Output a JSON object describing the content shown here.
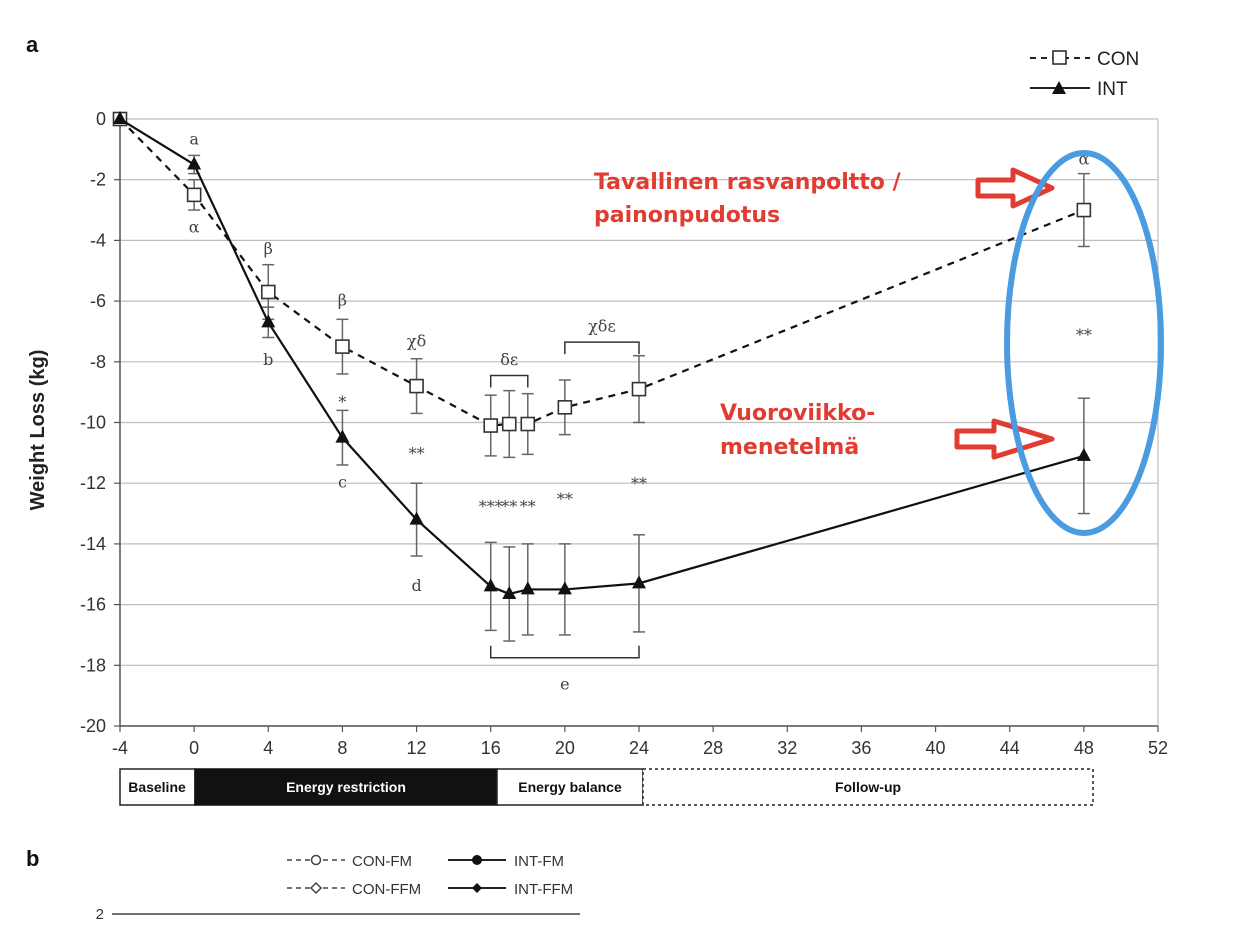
{
  "panel_a_label": "a",
  "panel_b_label": "b",
  "chart_data": {
    "type": "line",
    "title": "",
    "xlabel": "",
    "ylabel": "Weight Loss (kg)",
    "xlim": [
      -4,
      52
    ],
    "ylim": [
      -20,
      0
    ],
    "xticks": [
      -4,
      0,
      4,
      8,
      12,
      16,
      20,
      24,
      28,
      32,
      36,
      40,
      44,
      48,
      52
    ],
    "yticks": [
      0,
      -2,
      -4,
      -6,
      -8,
      -10,
      -12,
      -14,
      -16,
      -18,
      -20
    ],
    "grid": "horizontal",
    "legend_position": "top-right",
    "series": [
      {
        "name": "CON",
        "style": "dashed",
        "marker": "open-square",
        "x": [
          -4,
          0,
          4,
          8,
          12,
          16,
          17,
          18,
          20,
          24,
          48
        ],
        "y": [
          0,
          -2.5,
          -5.7,
          -7.5,
          -8.8,
          -10.1,
          -10.05,
          -10.05,
          -9.5,
          -8.9,
          -3.0
        ],
        "err": [
          0,
          0.5,
          0.9,
          0.9,
          0.9,
          1.0,
          1.1,
          1.0,
          0.9,
          1.1,
          1.2
        ]
      },
      {
        "name": "INT",
        "style": "solid",
        "marker": "filled-triangle",
        "x": [
          -4,
          0,
          4,
          8,
          12,
          16,
          17,
          18,
          20,
          24,
          48
        ],
        "y": [
          0,
          -1.5,
          -6.7,
          -10.5,
          -13.2,
          -15.4,
          -15.65,
          -15.5,
          -15.5,
          -15.3,
          -11.1
        ],
        "err": [
          0,
          0.3,
          0.5,
          0.9,
          1.2,
          1.45,
          1.55,
          1.5,
          1.5,
          1.6,
          1.9
        ]
      }
    ],
    "annotations": [
      {
        "text": "a",
        "x": 0,
        "y": -0.65
      },
      {
        "text": "α",
        "x": 0,
        "y": -3.55
      },
      {
        "text": "β",
        "x": 4,
        "y": -4.25
      },
      {
        "text": "b",
        "x": 4,
        "y": -7.9
      },
      {
        "text": "β",
        "x": 8,
        "y": -5.95
      },
      {
        "text": "*",
        "x": 8,
        "y": -9.3
      },
      {
        "text": "c",
        "x": 8,
        "y": -11.95
      },
      {
        "text": "χδ",
        "x": 12,
        "y": -7.3
      },
      {
        "text": "**",
        "x": 12,
        "y": -11.0
      },
      {
        "text": "d",
        "x": 12,
        "y": -15.35
      },
      {
        "text": "δε",
        "x": 17,
        "y": -7.9
      },
      {
        "text": "***",
        "x": 16,
        "y": -12.75
      },
      {
        "text": "**",
        "x": 17,
        "y": -12.75
      },
      {
        "text": "**",
        "x": 18,
        "y": -12.75
      },
      {
        "text": "χδε",
        "x": 22,
        "y": -6.8
      },
      {
        "text": "**",
        "x": 20,
        "y": -12.5
      },
      {
        "text": "**",
        "x": 24,
        "y": -12.0
      },
      {
        "text": "e",
        "x": 20,
        "y": -18.6
      },
      {
        "text": "α",
        "x": 48,
        "y": -1.3
      },
      {
        "text": "**",
        "x": 48,
        "y": -7.1
      }
    ],
    "phases": [
      "Baseline",
      "Energy restriction",
      "Energy balance",
      "Follow-up"
    ]
  },
  "callouts": {
    "top_line1": "Tavallinen rasvanpoltto /",
    "top_line2": "painonpudotus",
    "bottom_line1": "Vuoroviikko-",
    "bottom_line2": "menetelmä"
  },
  "panel_b": {
    "legend": [
      "CON-FM",
      "INT-FM",
      "CON-FFM",
      "INT-FFM"
    ],
    "first_tick": "2"
  },
  "colors": {
    "callout_red": "#e03c31",
    "highlight_blue": "#4a9be0"
  }
}
